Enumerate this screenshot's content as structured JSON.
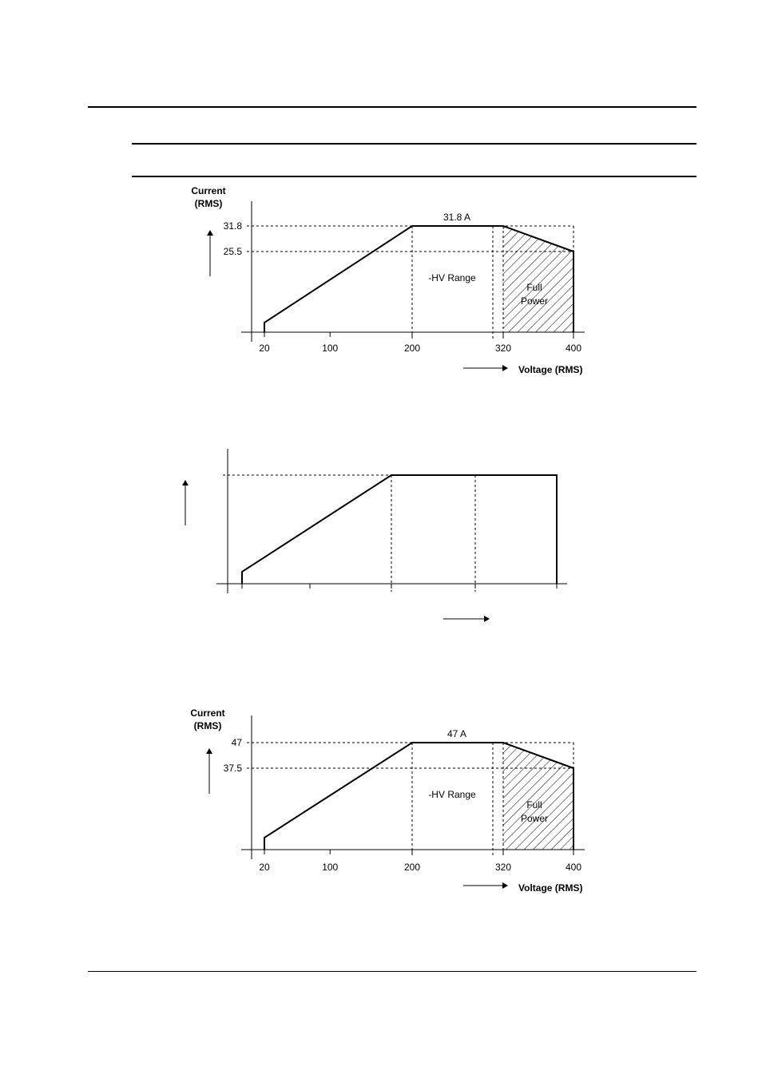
{
  "page": {
    "colors": {
      "ink": "#000000",
      "background": "#ffffff"
    }
  },
  "chart_data": [
    {
      "type": "line",
      "ylabel": "Current (RMS)",
      "xlabel": "Voltage (RMS)",
      "x_ticks": [
        "20",
        "100",
        "200",
        "320",
        "400"
      ],
      "y_ticks": [
        "31.8",
        "25.5"
      ],
      "xlim": [
        0,
        410
      ],
      "ylim": [
        0,
        33
      ],
      "series": [
        {
          "x": [
            20,
            20,
            200,
            320,
            400,
            400
          ],
          "y": [
            0,
            1.5,
            31.8,
            31.8,
            25.5,
            0
          ]
        }
      ],
      "plateau_label": "31.8 A",
      "range_label": "-HV Range",
      "full_power_label": [
        "Full",
        "Power"
      ],
      "full_power_region": [
        320,
        400
      ],
      "dashed_verticals": [
        200,
        310,
        320,
        400
      ],
      "dashed_horizontals": [
        31.8,
        25.5
      ]
    },
    {
      "type": "line",
      "ylabel": "",
      "xlabel": "",
      "x_ticks": [
        "",
        "",
        "",
        "",
        ""
      ],
      "y_ticks": [],
      "xlim": [
        0,
        410
      ],
      "ylim": [
        0,
        33
      ],
      "series": [
        {
          "x": [
            20,
            20,
            200,
            400,
            400
          ],
          "y": [
            0,
            1.5,
            31.8,
            31.8,
            0
          ]
        }
      ],
      "plateau_label": "",
      "range_label": "",
      "full_power_label": [],
      "dashed_verticals": [
        200,
        300
      ],
      "dashed_horizontals": [
        31.8
      ]
    },
    {
      "type": "line",
      "ylabel": "Current (RMS)",
      "xlabel": "Voltage (RMS)",
      "x_ticks": [
        "20",
        "100",
        "200",
        "320",
        "400"
      ],
      "y_ticks": [
        "47",
        "37.5"
      ],
      "xlim": [
        0,
        410
      ],
      "ylim": [
        0,
        49
      ],
      "series": [
        {
          "x": [
            20,
            20,
            200,
            320,
            400,
            400
          ],
          "y": [
            0,
            1.5,
            47,
            47,
            37.5,
            0
          ]
        }
      ],
      "plateau_label": "47 A",
      "range_label": "-HV Range",
      "full_power_label": [
        "Full",
        "Power"
      ],
      "full_power_region": [
        320,
        400
      ],
      "dashed_verticals": [
        200,
        310,
        320,
        400
      ],
      "dashed_horizontals": [
        47,
        37.5
      ]
    }
  ]
}
